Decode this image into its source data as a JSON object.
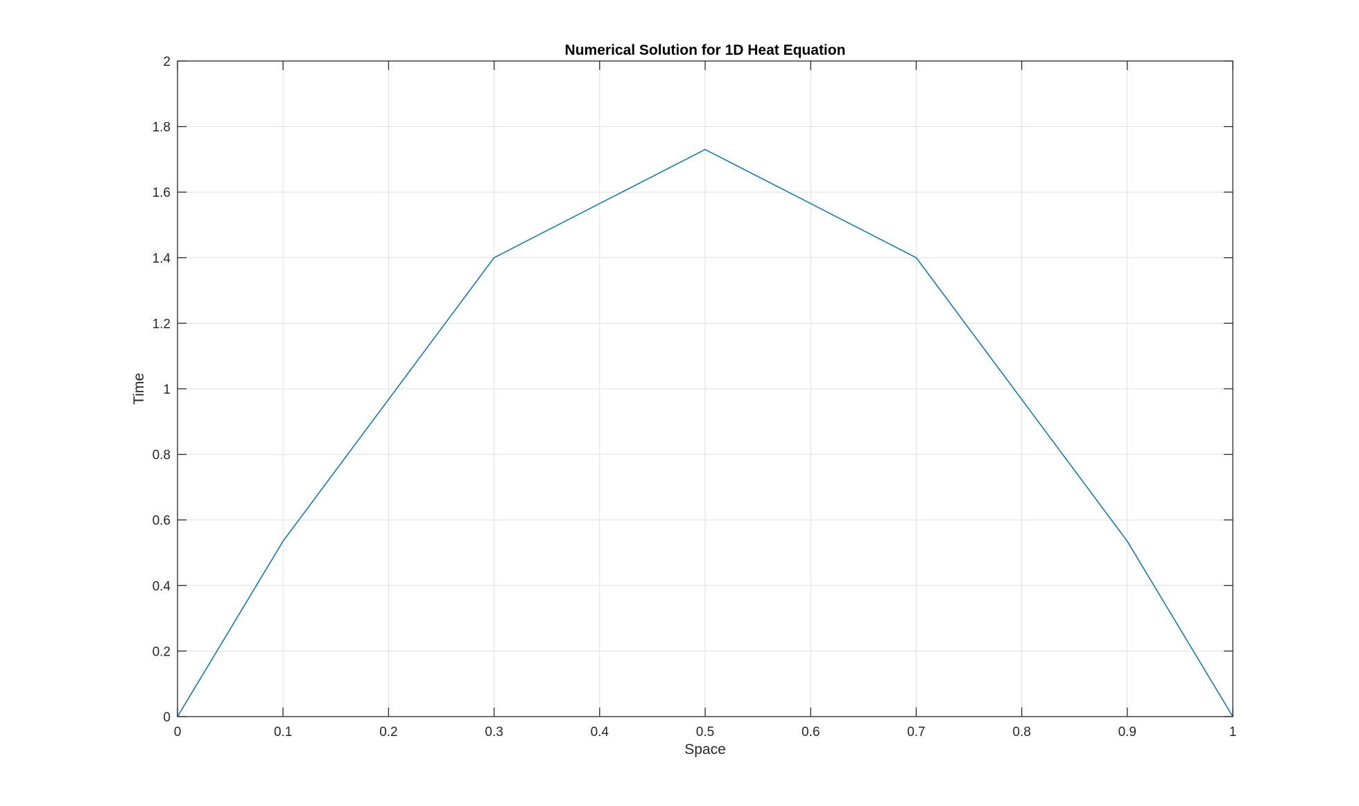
{
  "chart_data": {
    "type": "line",
    "title": "Numerical Solution for 1D Heat Equation",
    "xlabel": "Space",
    "ylabel": "Time",
    "xlim": [
      0,
      1
    ],
    "ylim": [
      0,
      2
    ],
    "xticks": [
      "0",
      "0.1",
      "0.2",
      "0.3",
      "0.4",
      "0.5",
      "0.6",
      "0.7",
      "0.8",
      "0.9",
      "1"
    ],
    "yticks": [
      "0",
      "0.2",
      "0.4",
      "0.6",
      "0.8",
      "1",
      "1.2",
      "1.4",
      "1.6",
      "1.8",
      "2"
    ],
    "grid": true,
    "series": [
      {
        "color": "#0072BD",
        "x": [
          0,
          0.1,
          0.3,
          0.5,
          0.7,
          0.9,
          1
        ],
        "y": [
          0,
          0.535,
          1.4,
          1.73,
          1.4,
          0.535,
          0
        ]
      }
    ]
  }
}
